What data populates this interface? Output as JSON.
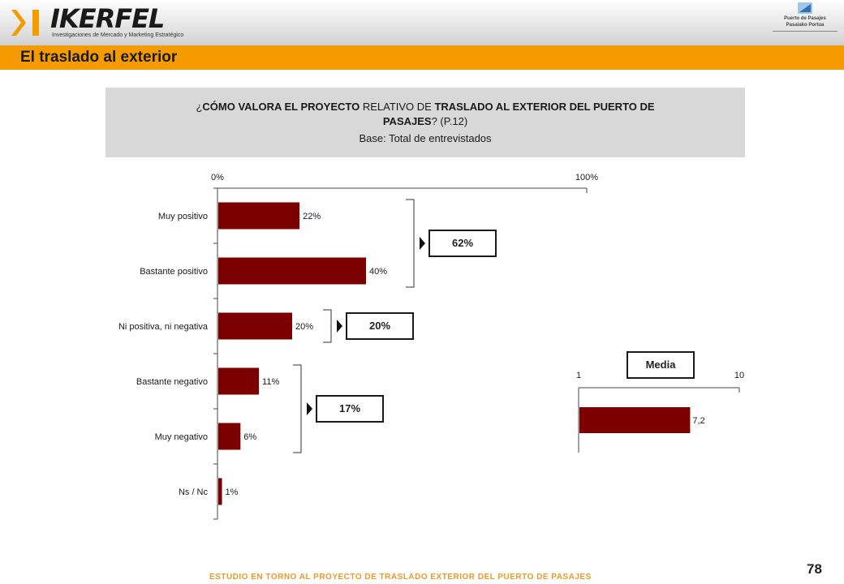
{
  "header": {
    "logo_text": "IKERFEL",
    "logo_subtitle": "Investigaciones de Mercado y Marketing Estratégico",
    "partner_line1": "Puerto de Pasajes",
    "partner_line2": "Pasaiako Portua",
    "colors": {
      "accent": "#f59b00",
      "bar": "#7b0000"
    }
  },
  "title": "El traslado al exterior",
  "question": {
    "p1_pre": "¿",
    "p1_bold1": "CÓMO VALORA EL PROYECTO",
    "p1_mid": " RELATIVO DE ",
    "p1_bold2": "TRASLADO AL EXTERIOR DEL PUERTO DE",
    "p2_bold": "PASAJES",
    "p2_rest": "? (P.12)",
    "base": "Base: Total de entrevistados"
  },
  "chart_data": [
    {
      "type": "bar",
      "orientation": "horizontal",
      "categories": [
        "Muy positivo",
        "Bastante positivo",
        "Ni positiva, ni negativa",
        "Bastante negativo",
        "Muy negativo",
        "Ns / Nc"
      ],
      "values": [
        22,
        40,
        20,
        11,
        6,
        1
      ],
      "value_labels": [
        "22%",
        "40%",
        "20%",
        "11%",
        "6%",
        "1%"
      ],
      "axis_min_label": "0%",
      "axis_max_label": "100%",
      "xlim": [
        0,
        100
      ],
      "groups": [
        {
          "label": "62%",
          "from": 0,
          "to": 1
        },
        {
          "label": "20%",
          "from": 2,
          "to": 2
        },
        {
          "label": "17%",
          "from": 3,
          "to": 4
        }
      ]
    },
    {
      "type": "bar",
      "orientation": "horizontal",
      "title": "Media",
      "values": [
        7.2
      ],
      "value_labels": [
        "7,2"
      ],
      "axis_min_label": "1",
      "axis_max_label": "10",
      "xlim": [
        1,
        10
      ]
    }
  ],
  "footer": "ESTUDIO EN TORNO AL PROYECTO DE TRASLADO EXTERIOR DEL PUERTO DE PASAJES",
  "page_number": "78"
}
